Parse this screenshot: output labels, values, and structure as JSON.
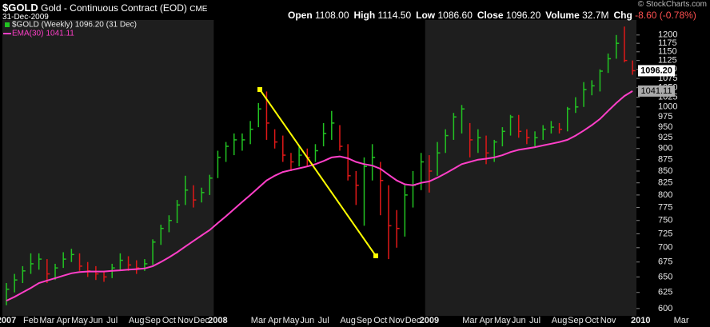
{
  "header": {
    "symbol": "$GOLD",
    "name": "Gold - Continuous Contract (EOD)",
    "exchange": "CME",
    "date": "31-Dec-2009",
    "quote": [
      {
        "label": "Open",
        "value": "1108.00"
      },
      {
        "label": "High",
        "value": "1114.50"
      },
      {
        "label": "Low",
        "value": "1086.60"
      },
      {
        "label": "Close",
        "value": "1096.20"
      },
      {
        "label": "Volume",
        "value": "32.7M"
      },
      {
        "label": "Chg",
        "value": "-8.60 (-0.78%)"
      }
    ],
    "copyright": "© StockCharts.com"
  },
  "chart_data": {
    "type": "ohlc",
    "log_scale": true,
    "grid": false,
    "legend_label": "$GOLD (Weekly) 1096.20 (31 Dec)",
    "price_tag": "1096.20",
    "ema_tag": "1041.11",
    "up_color": "#22c322",
    "down_color": "#e01818",
    "categories": [
      "2007",
      null,
      null,
      "Feb",
      null,
      "Mar",
      null,
      "Apr",
      null,
      "May",
      null,
      "Jun",
      null,
      "Jul",
      null,
      null,
      "Aug",
      null,
      "Sep",
      null,
      "Oct",
      null,
      "Nov",
      null,
      "Dec",
      null,
      "2008",
      null,
      null,
      null,
      null,
      "Mar",
      null,
      "Apr",
      null,
      "May",
      null,
      "Jun",
      null,
      "Jul",
      null,
      null,
      "Aug",
      null,
      "Sep",
      null,
      "Oct",
      null,
      "Nov",
      null,
      "Dec",
      null,
      "2009",
      null,
      null,
      null,
      null,
      "Mar",
      null,
      "Apr",
      null,
      "May",
      null,
      "Jun",
      null,
      "Jul",
      null,
      null,
      "Aug",
      null,
      "Sep",
      null,
      "Oct",
      null,
      "Nov",
      null,
      null,
      null,
      "2010",
      null,
      null,
      null,
      null,
      "Mar"
    ],
    "high": [
      640,
      655,
      668,
      690,
      690,
      680,
      672,
      692,
      698,
      690,
      675,
      668,
      660,
      672,
      690,
      685,
      678,
      680,
      715,
      742,
      760,
      790,
      840,
      820,
      815,
      842,
      895,
      915,
      935,
      935,
      965,
      1010,
      1040,
      945,
      930,
      890,
      905,
      900,
      910,
      960,
      990,
      955,
      910,
      850,
      880,
      910,
      870,
      820,
      770,
      820,
      850,
      890,
      885,
      915,
      945,
      985,
      1005,
      960,
      945,
      930,
      920,
      950,
      980,
      980,
      945,
      940,
      955,
      965,
      960,
      1000,
      1025,
      1065,
      1070,
      1100,
      1145,
      1200,
      1226,
      1125,
      null,
      null,
      null,
      null,
      null,
      null
    ],
    "low": [
      605,
      625,
      640,
      655,
      662,
      640,
      645,
      665,
      675,
      660,
      650,
      645,
      642,
      648,
      660,
      660,
      655,
      660,
      670,
      705,
      728,
      745,
      780,
      775,
      785,
      800,
      835,
      870,
      885,
      895,
      910,
      950,
      920,
      900,
      870,
      850,
      860,
      860,
      870,
      905,
      920,
      895,
      830,
      780,
      740,
      830,
      760,
      680,
      700,
      720,
      775,
      810,
      805,
      840,
      890,
      920,
      935,
      880,
      890,
      865,
      870,
      905,
      930,
      925,
      910,
      905,
      920,
      935,
      935,
      940,
      985,
      1000,
      1030,
      1040,
      1090,
      1130,
      1120,
      1085,
      null,
      null,
      null,
      null,
      null,
      null
    ],
    "close": [
      630,
      645,
      660,
      672,
      680,
      655,
      665,
      680,
      688,
      668,
      660,
      655,
      650,
      665,
      678,
      670,
      665,
      672,
      710,
      735,
      750,
      780,
      810,
      790,
      805,
      835,
      880,
      905,
      920,
      920,
      945,
      995,
      960,
      915,
      885,
      870,
      885,
      880,
      895,
      935,
      960,
      905,
      840,
      820,
      860,
      880,
      830,
      740,
      735,
      800,
      820,
      870,
      850,
      890,
      930,
      975,
      995,
      920,
      925,
      890,
      915,
      940,
      975,
      940,
      925,
      925,
      945,
      950,
      945,
      995,
      1000,
      1045,
      1055,
      1095,
      1130,
      1175,
      1125,
      1096.2,
      null,
      null,
      null,
      null,
      null,
      null
    ],
    "series": [
      {
        "name": "EMA(30)",
        "color": "#ff3fc8",
        "values": [
          612,
          618,
          625,
          632,
          640,
          644,
          648,
          652,
          656,
          658,
          659,
          659,
          659,
          660,
          661,
          662,
          663,
          664,
          668,
          675,
          683,
          692,
          702,
          712,
          722,
          732,
          745,
          758,
          772,
          786,
          800,
          815,
          830,
          840,
          848,
          852,
          856,
          860,
          865,
          872,
          880,
          882,
          878,
          870,
          865,
          862,
          855,
          842,
          830,
          822,
          820,
          825,
          828,
          836,
          845,
          855,
          865,
          870,
          875,
          877,
          880,
          885,
          892,
          897,
          900,
          903,
          907,
          911,
          915,
          920,
          930,
          942,
          955,
          970,
          990,
          1010,
          1028,
          1041.11,
          null,
          null,
          null,
          null,
          null,
          null
        ]
      }
    ],
    "ylim": [
      589,
      1234
    ],
    "yticks": [
      600,
      625,
      650,
      675,
      700,
      725,
      750,
      775,
      800,
      825,
      850,
      875,
      900,
      925,
      950,
      975,
      1000,
      1025,
      1050,
      1075,
      1100,
      1125,
      1150,
      1175,
      1200
    ]
  }
}
